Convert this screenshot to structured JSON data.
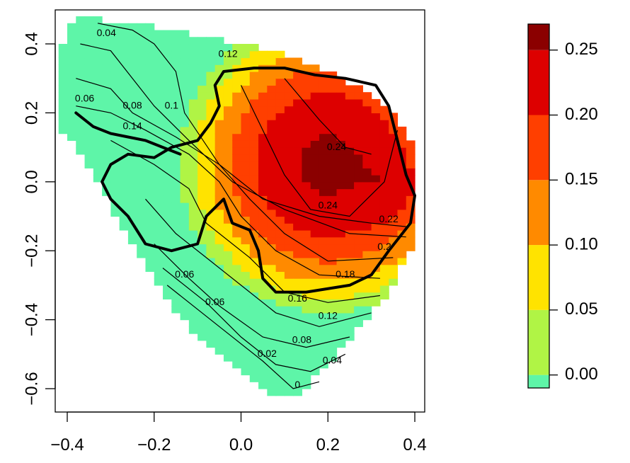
{
  "chart_data": {
    "type": "heatmap",
    "title": "",
    "xlabel": "",
    "ylabel": "",
    "xlim": [
      -0.42,
      0.42
    ],
    "ylim": [
      -0.66,
      0.5
    ],
    "x_ticks": [
      "−0.4",
      "−0.2",
      "0.0",
      "0.2",
      "0.4"
    ],
    "x_tick_values": [
      -0.4,
      -0.2,
      0.0,
      0.2,
      0.4
    ],
    "y_ticks": [
      "−0.6",
      "−0.4",
      "−0.2",
      "0.0",
      "0.2",
      "0.4"
    ],
    "y_tick_values": [
      -0.6,
      -0.4,
      -0.2,
      0.0,
      0.2,
      0.4
    ],
    "grid": false,
    "legend_position": "right",
    "color_scale": {
      "breaks": [
        -0.01,
        0.0,
        0.05,
        0.1,
        0.15,
        0.2,
        0.25,
        0.27
      ],
      "colors": [
        "#5ef5a8",
        "#b0f445",
        "#ffe300",
        "#ff8a00",
        "#ff3f00",
        "#dd0000",
        "#8b0000"
      ],
      "tick_labels": [
        "0.00",
        "0.05",
        "0.10",
        "0.15",
        "0.20",
        "0.25"
      ],
      "tick_values": [
        0.0,
        0.05,
        0.1,
        0.15,
        0.2,
        0.25
      ]
    },
    "contour_labels": [
      {
        "text": "0.04",
        "x": -0.31,
        "y": 0.43
      },
      {
        "text": "0.12",
        "x": -0.03,
        "y": 0.37
      },
      {
        "text": "0.06",
        "x": -0.36,
        "y": 0.24
      },
      {
        "text": "0.08",
        "x": -0.25,
        "y": 0.22
      },
      {
        "text": "0.1",
        "x": -0.16,
        "y": 0.22
      },
      {
        "text": "0.14",
        "x": -0.25,
        "y": 0.16
      },
      {
        "text": "0.24",
        "x": 0.22,
        "y": 0.1
      },
      {
        "text": "0.24",
        "x": 0.2,
        "y": -0.07
      },
      {
        "text": "0.22",
        "x": 0.34,
        "y": -0.11
      },
      {
        "text": "0.2",
        "x": 0.33,
        "y": -0.19
      },
      {
        "text": "0.18",
        "x": 0.24,
        "y": -0.27
      },
      {
        "text": "0.06",
        "x": -0.13,
        "y": -0.27
      },
      {
        "text": "0.06",
        "x": -0.06,
        "y": -0.35
      },
      {
        "text": "0.16",
        "x": 0.13,
        "y": -0.34
      },
      {
        "text": "0.12",
        "x": 0.2,
        "y": -0.39
      },
      {
        "text": "0.08",
        "x": 0.14,
        "y": -0.46
      },
      {
        "text": "0.02",
        "x": 0.06,
        "y": -0.5
      },
      {
        "text": "0.04",
        "x": 0.21,
        "y": -0.52
      },
      {
        "text": "0",
        "x": 0.13,
        "y": -0.59
      }
    ]
  }
}
